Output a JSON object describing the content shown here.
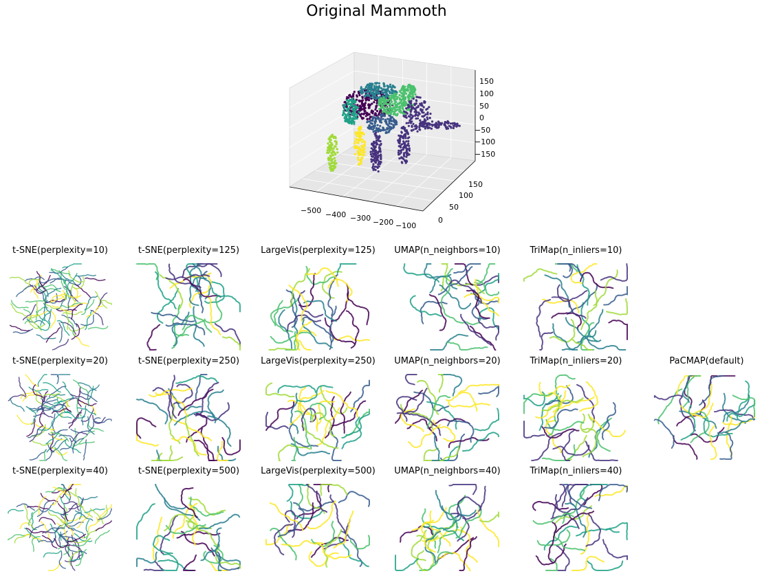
{
  "figure": {
    "title": "Original Mammoth",
    "palette": [
      "#440154",
      "#46327e",
      "#365c8d",
      "#277f8e",
      "#1fa187",
      "#4ac16d",
      "#a0da39",
      "#fde725"
    ]
  },
  "chart_data": [
    {
      "type": "scatter3d",
      "title": "Original Mammoth",
      "x_ticks": [
        "−500",
        "−400",
        "−300",
        "−200",
        "−100"
      ],
      "y_ticks": [
        "0",
        "50",
        "100",
        "150"
      ],
      "z_ticks": [
        "150",
        "100",
        "50",
        "0",
        "−50",
        "−100",
        "−150"
      ]
    },
    {
      "type": "scatter",
      "title": "t-SNE(perplexity=10)",
      "grid": false
    },
    {
      "type": "scatter",
      "title": "t-SNE(perplexity=125)",
      "grid": false
    },
    {
      "type": "scatter",
      "title": "LargeVis(perplexity=125)",
      "grid": false
    },
    {
      "type": "scatter",
      "title": "UMAP(n_neighbors=10)",
      "grid": false
    },
    {
      "type": "scatter",
      "title": "TriMap(n_inliers=10)",
      "grid": false
    },
    {
      "type": "scatter",
      "title": "t-SNE(perplexity=20)",
      "grid": false
    },
    {
      "type": "scatter",
      "title": "t-SNE(perplexity=250)",
      "grid": false
    },
    {
      "type": "scatter",
      "title": "LargeVis(perplexity=250)",
      "grid": false
    },
    {
      "type": "scatter",
      "title": "UMAP(n_neighbors=20)",
      "grid": false
    },
    {
      "type": "scatter",
      "title": "TriMap(n_inliers=20)",
      "grid": false
    },
    {
      "type": "scatter",
      "title": "PaCMAP(default)",
      "grid": false
    },
    {
      "type": "scatter",
      "title": "t-SNE(perplexity=40)",
      "grid": false
    },
    {
      "type": "scatter",
      "title": "t-SNE(perplexity=500)",
      "grid": false
    },
    {
      "type": "scatter",
      "title": "LargeVis(perplexity=500)",
      "grid": false
    },
    {
      "type": "scatter",
      "title": "UMAP(n_neighbors=40)",
      "grid": false
    },
    {
      "type": "scatter",
      "title": "TriMap(n_inliers=40)",
      "grid": false
    }
  ]
}
